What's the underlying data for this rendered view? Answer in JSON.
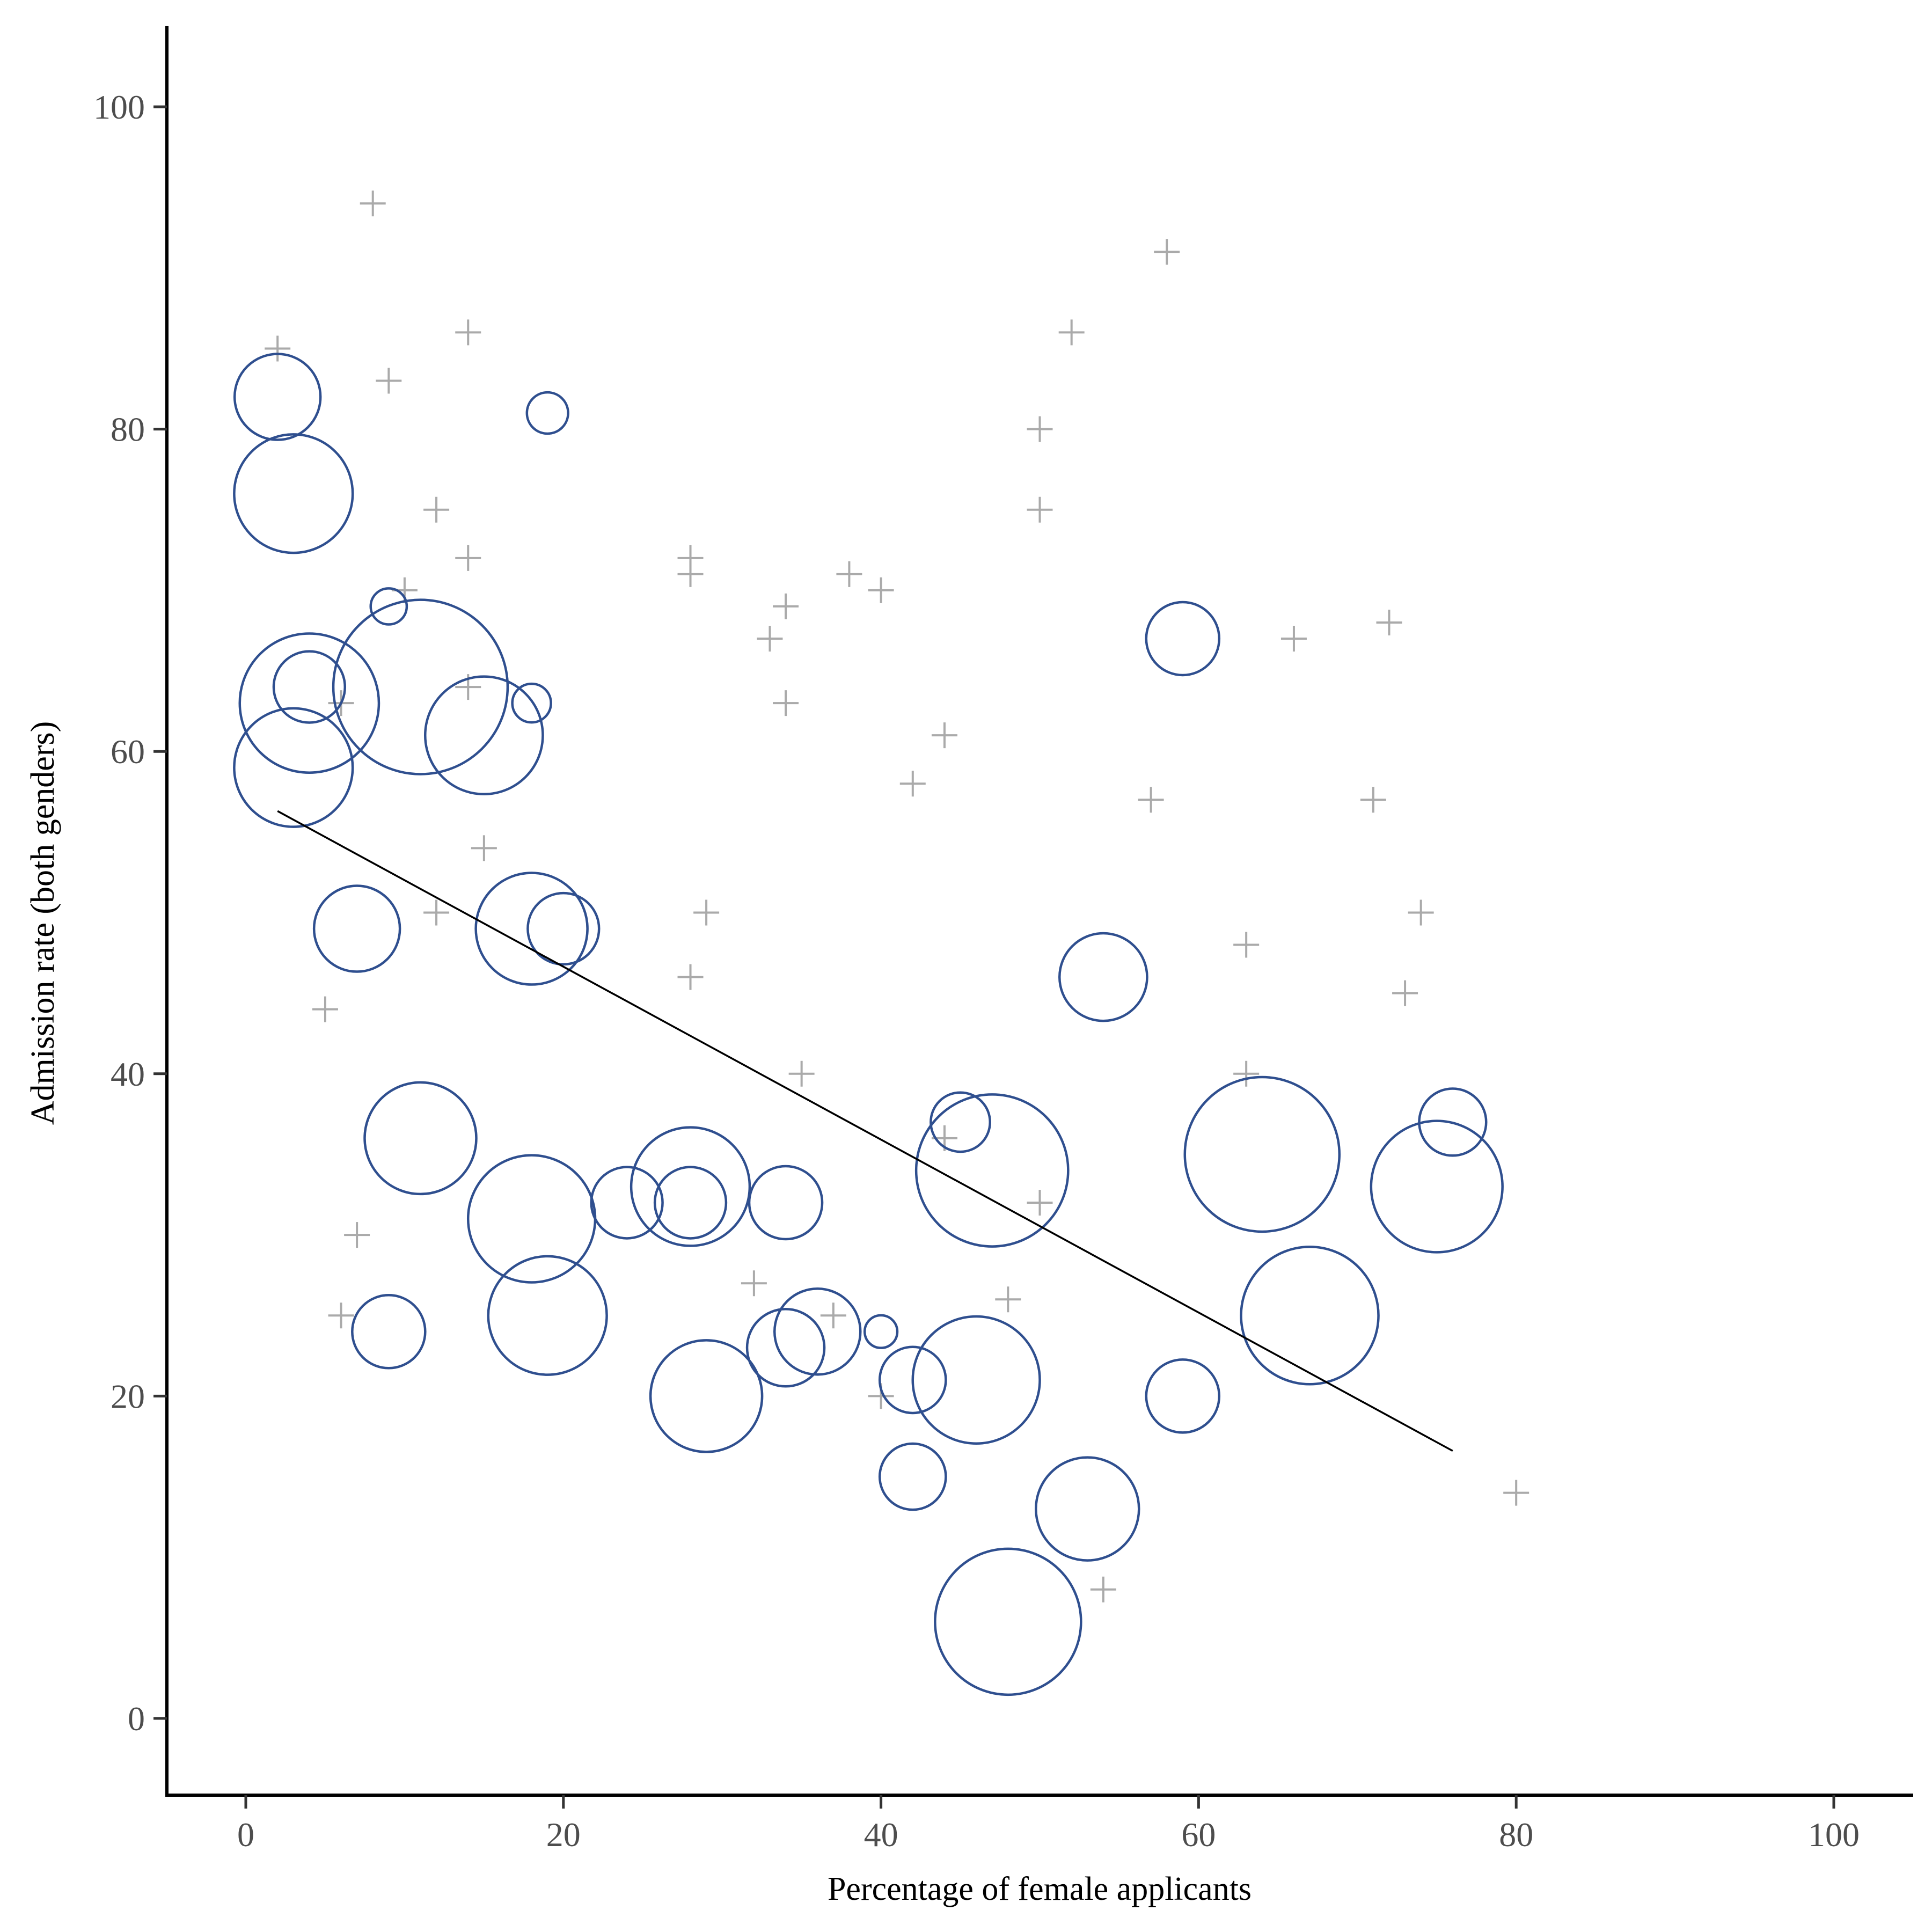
{
  "chart_data": {
    "type": "scatter",
    "xlabel": "Percentage of female applicants",
    "ylabel": "Admission rate (both genders)",
    "xlim": [
      -5,
      105
    ],
    "ylim": [
      -5,
      105
    ],
    "x_ticks": [
      0,
      20,
      40,
      60,
      80,
      100
    ],
    "y_ticks": [
      0,
      20,
      40,
      60,
      80,
      100
    ],
    "grid": false,
    "colors": {
      "bubble": "#2f4f8f",
      "cross": "#aaaaaa",
      "trend": "#000000"
    },
    "bubbles": [
      {
        "x": 2,
        "y": 82,
        "size": 1.0
      },
      {
        "x": 3,
        "y": 76,
        "size": 1.38
      },
      {
        "x": 9,
        "y": 69,
        "size": 0.42
      },
      {
        "x": 19,
        "y": 81,
        "size": 0.48
      },
      {
        "x": 4,
        "y": 63,
        "size": 1.62
      },
      {
        "x": 4,
        "y": 64,
        "size": 0.83
      },
      {
        "x": 11,
        "y": 64,
        "size": 2.03
      },
      {
        "x": 15,
        "y": 61,
        "size": 1.37
      },
      {
        "x": 18,
        "y": 63,
        "size": 0.45
      },
      {
        "x": 3,
        "y": 59,
        "size": 1.38
      },
      {
        "x": 7,
        "y": 49,
        "size": 1.0
      },
      {
        "x": 18,
        "y": 49,
        "size": 1.3
      },
      {
        "x": 20,
        "y": 49,
        "size": 0.83
      },
      {
        "x": 11,
        "y": 36,
        "size": 1.3
      },
      {
        "x": 18,
        "y": 31,
        "size": 1.48
      },
      {
        "x": 9,
        "y": 24,
        "size": 0.85
      },
      {
        "x": 19,
        "y": 25,
        "size": 1.38
      },
      {
        "x": 24,
        "y": 32,
        "size": 0.83
      },
      {
        "x": 28,
        "y": 33,
        "size": 1.38
      },
      {
        "x": 28,
        "y": 32,
        "size": 0.83
      },
      {
        "x": 34,
        "y": 32,
        "size": 0.85
      },
      {
        "x": 29,
        "y": 20,
        "size": 1.3
      },
      {
        "x": 34,
        "y": 23,
        "size": 0.9
      },
      {
        "x": 36,
        "y": 24,
        "size": 1.0
      },
      {
        "x": 40,
        "y": 24,
        "size": 0.38
      },
      {
        "x": 42,
        "y": 21,
        "size": 0.77
      },
      {
        "x": 46,
        "y": 21,
        "size": 1.48
      },
      {
        "x": 42,
        "y": 15,
        "size": 0.77
      },
      {
        "x": 45,
        "y": 37,
        "size": 0.69
      },
      {
        "x": 47,
        "y": 34,
        "size": 1.77
      },
      {
        "x": 48,
        "y": 6,
        "size": 1.7
      },
      {
        "x": 53,
        "y": 13,
        "size": 1.2
      },
      {
        "x": 54,
        "y": 46,
        "size": 1.02
      },
      {
        "x": 59,
        "y": 67,
        "size": 0.85
      },
      {
        "x": 59,
        "y": 20,
        "size": 0.85
      },
      {
        "x": 64,
        "y": 35,
        "size": 1.8
      },
      {
        "x": 67,
        "y": 25,
        "size": 1.6
      },
      {
        "x": 75,
        "y": 33,
        "size": 1.53
      },
      {
        "x": 76,
        "y": 37,
        "size": 0.78
      }
    ],
    "crosses": [
      {
        "x": 8,
        "y": 94
      },
      {
        "x": 2,
        "y": 85
      },
      {
        "x": 9,
        "y": 83
      },
      {
        "x": 14,
        "y": 86
      },
      {
        "x": 12,
        "y": 75
      },
      {
        "x": 14,
        "y": 72
      },
      {
        "x": 10,
        "y": 70
      },
      {
        "x": 14,
        "y": 64
      },
      {
        "x": 6,
        "y": 63
      },
      {
        "x": 15,
        "y": 54
      },
      {
        "x": 12,
        "y": 50
      },
      {
        "x": 5,
        "y": 44
      },
      {
        "x": 7,
        "y": 30
      },
      {
        "x": 6,
        "y": 25
      },
      {
        "x": 28,
        "y": 72
      },
      {
        "x": 28,
        "y": 71
      },
      {
        "x": 33,
        "y": 67
      },
      {
        "x": 34,
        "y": 69
      },
      {
        "x": 34,
        "y": 63
      },
      {
        "x": 38,
        "y": 71
      },
      {
        "x": 40,
        "y": 70
      },
      {
        "x": 29,
        "y": 50
      },
      {
        "x": 28,
        "y": 46
      },
      {
        "x": 35,
        "y": 40
      },
      {
        "x": 32,
        "y": 27
      },
      {
        "x": 37,
        "y": 25
      },
      {
        "x": 40,
        "y": 20
      },
      {
        "x": 42,
        "y": 58
      },
      {
        "x": 44,
        "y": 61
      },
      {
        "x": 44,
        "y": 36
      },
      {
        "x": 48,
        "y": 26
      },
      {
        "x": 50,
        "y": 32
      },
      {
        "x": 50,
        "y": 80
      },
      {
        "x": 50,
        "y": 75
      },
      {
        "x": 52,
        "y": 86
      },
      {
        "x": 58,
        "y": 91
      },
      {
        "x": 57,
        "y": 57
      },
      {
        "x": 54,
        "y": 8
      },
      {
        "x": 63,
        "y": 48
      },
      {
        "x": 63,
        "y": 40
      },
      {
        "x": 66,
        "y": 67
      },
      {
        "x": 72,
        "y": 68
      },
      {
        "x": 71,
        "y": 57
      },
      {
        "x": 74,
        "y": 50
      },
      {
        "x": 73,
        "y": 45
      },
      {
        "x": 80,
        "y": 14
      }
    ],
    "trendline": [
      {
        "x": 2,
        "y": 56.3
      },
      {
        "x": 76,
        "y": 16.6
      }
    ]
  }
}
